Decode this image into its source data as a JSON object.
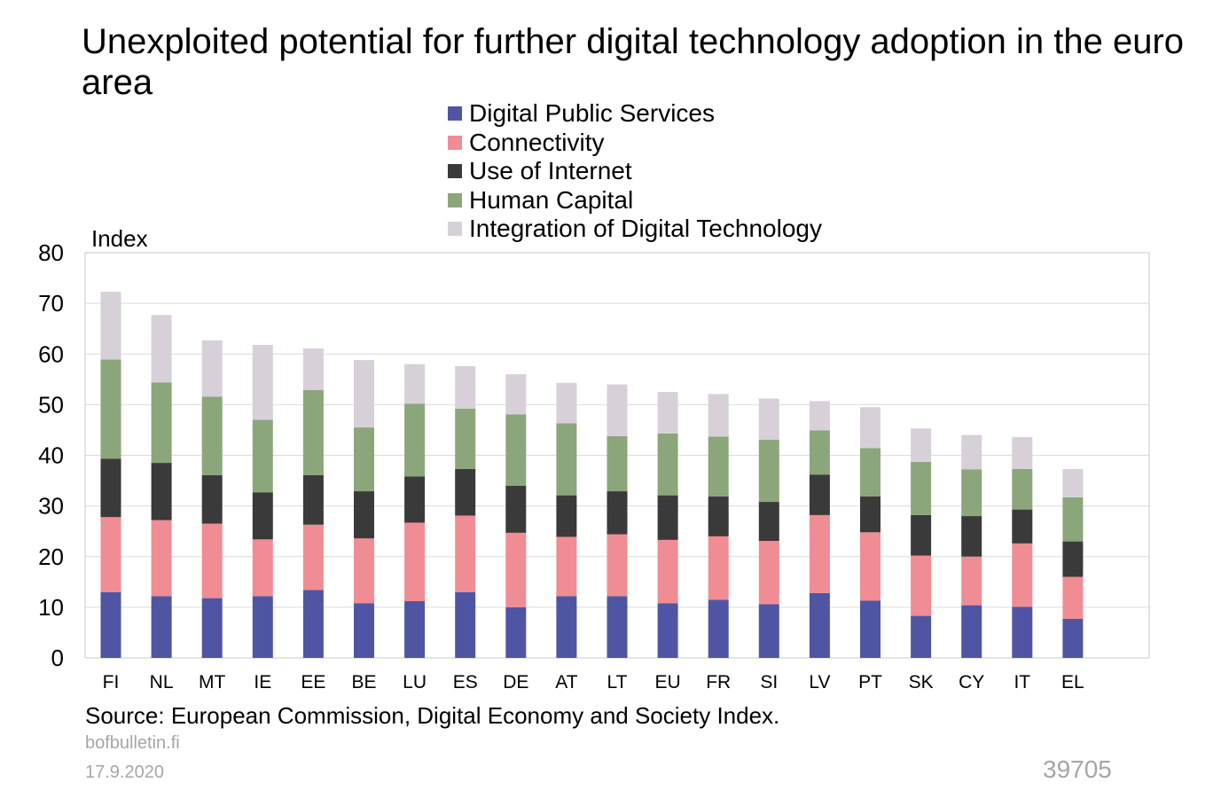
{
  "title": "Unexploited potential for further digital technology adoption in the euro area",
  "source": "Source: European Commission, Digital Economy and Society Index.",
  "footer": {
    "site": "bofbulletin.fi",
    "date": "17.9.2020",
    "id": "39705"
  },
  "chart_data": {
    "type": "bar",
    "stacked": true,
    "ylabel": "Index",
    "ylim": [
      0,
      80
    ],
    "yticks": [
      0,
      10,
      20,
      30,
      40,
      50,
      60,
      70,
      80
    ],
    "grid": true,
    "legend_position": "top",
    "categories": [
      "FI",
      "NL",
      "MT",
      "IE",
      "EE",
      "BE",
      "LU",
      "ES",
      "DE",
      "AT",
      "LT",
      "EU",
      "FR",
      "SI",
      "LV",
      "PT",
      "SK",
      "CY",
      "IT",
      "EL"
    ],
    "series": [
      {
        "name": "Digital Public Services",
        "color": "#4f55a3",
        "values": [
          13.0,
          12.2,
          11.8,
          12.2,
          13.4,
          10.8,
          11.2,
          13.0,
          10.0,
          12.2,
          12.2,
          10.8,
          11.5,
          10.6,
          12.8,
          11.3,
          8.3,
          10.4,
          10.1,
          7.7
        ]
      },
      {
        "name": "Connectivity",
        "color": "#f08c93",
        "values": [
          14.8,
          15.0,
          14.7,
          11.2,
          12.9,
          12.8,
          15.5,
          15.1,
          14.7,
          11.7,
          12.2,
          12.5,
          12.5,
          12.5,
          15.4,
          13.5,
          11.9,
          9.6,
          12.5,
          8.3
        ]
      },
      {
        "name": "Use of Internet",
        "color": "#3a3a3a",
        "values": [
          11.5,
          11.3,
          9.6,
          9.3,
          9.8,
          9.3,
          9.1,
          9.2,
          9.3,
          8.2,
          8.5,
          8.8,
          7.9,
          7.7,
          8.0,
          7.1,
          8.0,
          8.0,
          6.7,
          7.0
        ]
      },
      {
        "name": "Human Capital",
        "color": "#8ba67a",
        "values": [
          19.6,
          15.9,
          15.5,
          14.3,
          16.8,
          12.6,
          14.4,
          11.9,
          14.1,
          14.2,
          10.9,
          12.2,
          11.8,
          12.3,
          8.7,
          9.5,
          10.5,
          9.2,
          8.0,
          8.7
        ]
      },
      {
        "name": "Integration of Digital Technology",
        "color": "#d8d0d8",
        "values": [
          13.4,
          13.3,
          11.1,
          14.8,
          8.2,
          13.3,
          7.8,
          8.4,
          7.9,
          8.0,
          10.2,
          8.2,
          8.4,
          8.1,
          5.8,
          8.1,
          6.6,
          6.8,
          6.3,
          5.6
        ]
      }
    ]
  }
}
